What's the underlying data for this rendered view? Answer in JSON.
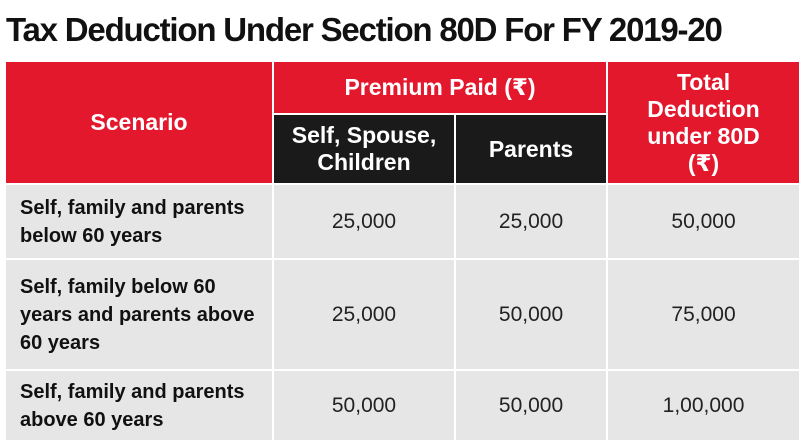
{
  "title": "Tax Deduction Under Section 80D For FY 2019-20",
  "table": {
    "headers": {
      "scenario": "Scenario",
      "premium_paid": "Premium Paid (₹)",
      "self_spouse_children": "Self, Spouse, Children",
      "parents": "Parents",
      "total_deduction": "Total Deduction under 80D (₹)"
    },
    "rows": [
      {
        "scenario": "Self, family and parents below 60 years",
        "self": "25,000",
        "parents": "25,000",
        "total": "50,000"
      },
      {
        "scenario": "Self, family below 60 years and parents above 60 years",
        "self": "25,000",
        "parents": "50,000",
        "total": "75,000"
      },
      {
        "scenario": "Self, family and parents above 60 years",
        "self": "50,000",
        "parents": "50,000",
        "total": "1,00,000"
      }
    ]
  },
  "colors": {
    "header_red": "#e3182d",
    "header_black": "#1a1a1a",
    "row_gray": "#e6e6e6",
    "title_text": "#111111"
  }
}
